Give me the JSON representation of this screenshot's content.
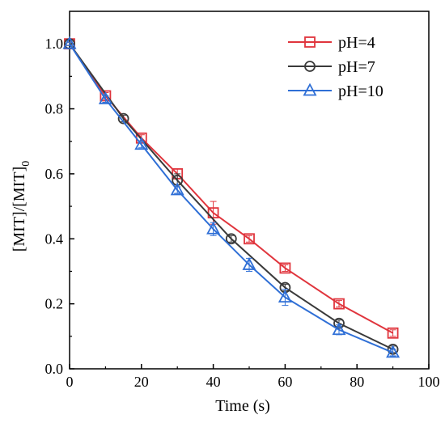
{
  "chart_data": {
    "type": "line",
    "title": "",
    "xlabel": "Time (s)",
    "ylabel_main": "[MIT]/[MIT]",
    "ylabel_sub": "0",
    "xlim": [
      0,
      100
    ],
    "ylim": [
      0.0,
      1.1
    ],
    "xticks": [
      0,
      20,
      40,
      60,
      80,
      100
    ],
    "xtick_labels": [
      "0",
      "20",
      "40",
      "60",
      "80",
      "100"
    ],
    "yticks": [
      0.0,
      0.2,
      0.4,
      0.6,
      0.8,
      1.0
    ],
    "ytick_labels": [
      "0.0",
      "0.2",
      "0.4",
      "0.6",
      "0.8",
      "1.0"
    ],
    "grid": false,
    "legend_position": "top-right",
    "series": [
      {
        "name": "pH=4",
        "color": "#e0353d",
        "marker": "square",
        "x": [
          0,
          10,
          20,
          30,
          40,
          50,
          60,
          75,
          90
        ],
        "y": [
          1.0,
          0.84,
          0.71,
          0.6,
          0.48,
          0.4,
          0.31,
          0.2,
          0.11
        ],
        "err": [
          0.005,
          0.01,
          0.01,
          0.015,
          0.035,
          0.01,
          0.01,
          0.01,
          0.01
        ]
      },
      {
        "name": "pH=7",
        "color": "#3a3a3a",
        "marker": "circle",
        "x": [
          0,
          15,
          30,
          45,
          60,
          75,
          90
        ],
        "y": [
          1.0,
          0.77,
          0.58,
          0.4,
          0.25,
          0.14,
          0.06
        ],
        "err": [
          0.005,
          0.01,
          0.02,
          0.01,
          0.01,
          0.01,
          0.01
        ]
      },
      {
        "name": "pH=10",
        "color": "#2f6fd6",
        "marker": "triangle",
        "x": [
          0,
          10,
          20,
          30,
          40,
          50,
          60,
          75,
          90
        ],
        "y": [
          1.0,
          0.83,
          0.69,
          0.55,
          0.43,
          0.32,
          0.22,
          0.12,
          0.05
        ],
        "err": [
          0.005,
          0.01,
          0.01,
          0.01,
          0.02,
          0.02,
          0.025,
          0.015,
          0.01
        ]
      }
    ]
  }
}
